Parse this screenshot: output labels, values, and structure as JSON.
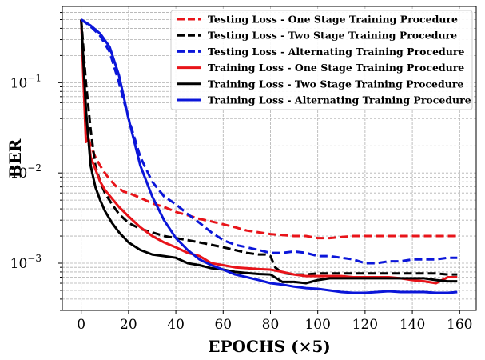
{
  "chart_data": {
    "type": "line",
    "title": "",
    "xlabel": "EPOCHS (×5)",
    "ylabel": "BER",
    "xlim": [
      -8,
      167
    ],
    "ylim": [
      0.0003,
      0.7
    ],
    "yscale": "log",
    "xticks": [
      0,
      20,
      40,
      60,
      80,
      100,
      120,
      140,
      160
    ],
    "xtick_labels": [
      "0",
      "20",
      "40",
      "60",
      "80",
      "100",
      "120",
      "140",
      "160"
    ],
    "ytick_labels": [
      {
        "value": 0.1,
        "base": "10",
        "exp": "−1"
      },
      {
        "value": 0.01,
        "base": "10",
        "exp": "−2"
      },
      {
        "value": 0.001,
        "base": "10",
        "exp": "−3"
      }
    ],
    "grid": true,
    "legend_position": "top-right",
    "series": [
      {
        "name": "Testing Loss - One Stage Training Procedure",
        "color": "#e8141a",
        "dash": "dashed",
        "x": [
          0,
          2,
          4,
          6,
          8,
          10,
          12,
          15,
          18,
          20,
          25,
          30,
          35,
          40,
          45,
          50,
          55,
          60,
          65,
          70,
          75,
          80,
          85,
          90,
          95,
          100,
          105,
          110,
          115,
          120,
          125,
          130,
          135,
          140,
          145,
          150,
          155,
          159
        ],
        "y": [
          0.5,
          0.03,
          0.02,
          0.015,
          0.012,
          0.01,
          0.0085,
          0.007,
          0.0062,
          0.006,
          0.0053,
          0.0046,
          0.0042,
          0.0037,
          0.0034,
          0.0031,
          0.0029,
          0.0027,
          0.0025,
          0.0023,
          0.0022,
          0.0021,
          0.00205,
          0.002,
          0.002,
          0.0019,
          0.0019,
          0.00195,
          0.002,
          0.002,
          0.002,
          0.002,
          0.002,
          0.002,
          0.002,
          0.002,
          0.002,
          0.002
        ]
      },
      {
        "name": "Testing Loss - Two Stage Training Procedure",
        "color": "#000000",
        "dash": "dashed",
        "x": [
          0,
          2,
          4,
          6,
          8,
          10,
          13,
          16,
          20,
          25,
          30,
          35,
          40,
          45,
          50,
          55,
          60,
          65,
          70,
          75,
          78,
          80,
          82,
          85,
          90,
          95,
          100,
          110,
          120,
          130,
          140,
          150,
          155,
          159
        ],
        "y": [
          0.5,
          0.1,
          0.03,
          0.012,
          0.008,
          0.006,
          0.0045,
          0.0035,
          0.0028,
          0.0024,
          0.0022,
          0.002,
          0.0019,
          0.0018,
          0.0017,
          0.0016,
          0.0015,
          0.0014,
          0.0013,
          0.00125,
          0.00125,
          0.0012,
          0.0009,
          0.00078,
          0.00075,
          0.00075,
          0.00077,
          0.00077,
          0.00077,
          0.00077,
          0.00077,
          0.00077,
          0.00075,
          0.00075
        ]
      },
      {
        "name": "Testing Loss - Alternating Training Procedure",
        "color": "#0b16d9",
        "dash": "dashed",
        "x": [
          0,
          4,
          8,
          12,
          16,
          20,
          25,
          30,
          35,
          40,
          45,
          50,
          55,
          60,
          65,
          70,
          75,
          80,
          85,
          90,
          95,
          100,
          105,
          110,
          115,
          120,
          125,
          130,
          135,
          140,
          145,
          150,
          155,
          159
        ],
        "y": [
          0.5,
          0.42,
          0.33,
          0.22,
          0.1,
          0.04,
          0.015,
          0.008,
          0.0055,
          0.0045,
          0.0035,
          0.0028,
          0.0022,
          0.0018,
          0.0016,
          0.0015,
          0.0014,
          0.0013,
          0.0013,
          0.00135,
          0.0013,
          0.0012,
          0.0012,
          0.00115,
          0.0011,
          0.001,
          0.001,
          0.00105,
          0.00105,
          0.0011,
          0.0011,
          0.0011,
          0.00115,
          0.00115
        ]
      },
      {
        "name": "Training Loss - One Stage Training Procedure",
        "color": "#e8141a",
        "dash": "solid",
        "x": [
          0,
          1,
          2,
          3,
          4,
          6,
          8,
          10,
          13,
          16,
          20,
          25,
          30,
          35,
          40,
          45,
          50,
          55,
          60,
          65,
          70,
          75,
          80,
          85,
          90,
          95,
          100,
          105,
          110,
          115,
          120,
          125,
          130,
          135,
          140,
          145,
          150,
          155,
          159
        ],
        "y": [
          0.5,
          0.1,
          0.022,
          0.025,
          0.015,
          0.011,
          0.008,
          0.0065,
          0.0052,
          0.0042,
          0.0033,
          0.0025,
          0.002,
          0.0017,
          0.0015,
          0.0013,
          0.0012,
          0.001,
          0.00095,
          0.0009,
          0.00088,
          0.00086,
          0.00085,
          0.0008,
          0.00075,
          0.00072,
          0.00072,
          0.00072,
          0.00072,
          0.0007,
          0.0007,
          0.0007,
          0.0007,
          0.00068,
          0.00065,
          0.00063,
          0.0006,
          0.0007,
          0.0007
        ]
      },
      {
        "name": "Training Loss - Two Stage Training Procedure",
        "color": "#000000",
        "dash": "solid",
        "x": [
          0,
          2,
          4,
          6,
          8,
          10,
          13,
          16,
          20,
          25,
          30,
          35,
          40,
          45,
          50,
          55,
          60,
          65,
          70,
          75,
          80,
          85,
          90,
          95,
          100,
          105,
          110,
          115,
          120,
          125,
          130,
          135,
          140,
          145,
          150,
          155,
          159
        ],
        "y": [
          0.5,
          0.05,
          0.012,
          0.007,
          0.005,
          0.0038,
          0.0028,
          0.0022,
          0.0017,
          0.0014,
          0.00125,
          0.0012,
          0.00115,
          0.001,
          0.00095,
          0.00088,
          0.00085,
          0.0008,
          0.00078,
          0.00076,
          0.00075,
          0.00062,
          0.00062,
          0.0006,
          0.00065,
          0.00068,
          0.00068,
          0.00068,
          0.00068,
          0.00068,
          0.00068,
          0.00068,
          0.00068,
          0.00068,
          0.00065,
          0.00063,
          0.00063
        ]
      },
      {
        "name": "Training Loss - Alternating Training Procedure",
        "color": "#0b16d9",
        "dash": "solid",
        "x": [
          0,
          4,
          8,
          12,
          16,
          20,
          25,
          30,
          35,
          40,
          45,
          50,
          55,
          60,
          65,
          70,
          75,
          80,
          85,
          90,
          95,
          100,
          105,
          110,
          115,
          120,
          125,
          130,
          135,
          140,
          145,
          150,
          155,
          159
        ],
        "y": [
          0.5,
          0.43,
          0.35,
          0.25,
          0.12,
          0.04,
          0.012,
          0.0055,
          0.003,
          0.0019,
          0.0014,
          0.0011,
          0.00095,
          0.00085,
          0.00075,
          0.0007,
          0.00065,
          0.0006,
          0.00058,
          0.00055,
          0.00053,
          0.00052,
          0.0005,
          0.00048,
          0.00047,
          0.00047,
          0.00048,
          0.00049,
          0.00048,
          0.00048,
          0.00048,
          0.00047,
          0.00047,
          0.00048
        ]
      }
    ]
  }
}
